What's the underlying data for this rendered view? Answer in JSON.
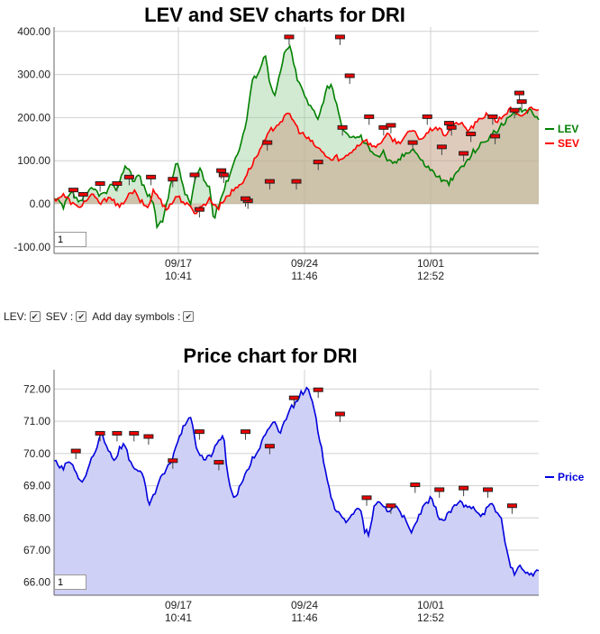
{
  "controls": {
    "lev_label": "LEV:",
    "sev_label": "SEV :",
    "day_symbols_label": "Add day symbols :",
    "check_mark": "✔"
  },
  "chart_data": [
    {
      "type": "area",
      "title": "LEV and SEV charts for DRI",
      "ylim": [
        -115,
        410
      ],
      "y_ticks": [
        "-100.00",
        "0.00",
        "100.00",
        "200.00",
        "300.00",
        "400.00"
      ],
      "x_ticks": [
        {
          "date": "09/17",
          "time": "10:41"
        },
        {
          "date": "09/24",
          "time": "11:46"
        },
        {
          "date": "10/01",
          "time": "12:52"
        }
      ],
      "zoom_value": "1",
      "colors": {
        "lev": "#008000",
        "sev": "#ff0000",
        "lev_fill": "#cfe3cf",
        "sev_fill": "#d9c4b6",
        "grid": "#c8c8c8"
      },
      "series": [
        {
          "name": "LEV",
          "values": [
            10,
            5,
            -10,
            15,
            25,
            5,
            10,
            20,
            35,
            30,
            20,
            25,
            40,
            35,
            50,
            90,
            80,
            50,
            70,
            40,
            20,
            10,
            -60,
            -40,
            0,
            60,
            100,
            60,
            20,
            0,
            60,
            80,
            50,
            40,
            -40,
            0,
            30,
            60,
            90,
            120,
            150,
            200,
            280,
            300,
            320,
            350,
            270,
            250,
            300,
            350,
            370,
            320,
            280,
            260,
            230,
            220,
            200,
            230,
            270,
            280,
            230,
            180,
            160,
            160,
            150,
            160,
            140,
            130,
            120,
            110,
            120,
            100,
            90,
            100,
            110,
            120,
            130,
            120,
            100,
            90,
            80,
            70,
            60,
            50,
            50,
            60,
            80,
            90,
            100,
            120,
            130,
            140,
            150,
            160,
            170,
            180,
            190,
            200,
            210,
            215,
            220,
            215,
            210,
            200
          ]
        },
        {
          "name": "SEV",
          "values": [
            10,
            15,
            20,
            10,
            0,
            -10,
            0,
            10,
            20,
            10,
            0,
            10,
            20,
            0,
            -10,
            10,
            20,
            30,
            10,
            0,
            -10,
            30,
            20,
            0,
            -10,
            0,
            20,
            10,
            0,
            -10,
            -20,
            -10,
            0,
            10,
            0,
            -10,
            10,
            20,
            30,
            40,
            50,
            70,
            90,
            110,
            130,
            150,
            170,
            180,
            190,
            200,
            210,
            190,
            170,
            160,
            150,
            140,
            130,
            120,
            110,
            100,
            110,
            100,
            110,
            120,
            130,
            140,
            150,
            140,
            130,
            140,
            150,
            160,
            150,
            140,
            150,
            160,
            170,
            160,
            150,
            160,
            170,
            180,
            170,
            160,
            170,
            180,
            190,
            180,
            170,
            180,
            190,
            200,
            210,
            200,
            190,
            200,
            210,
            220,
            210,
            200,
            210,
            220,
            225,
            215
          ]
        }
      ],
      "legend": {
        "position": "right",
        "entries": [
          "LEV",
          "SEV"
        ]
      },
      "day_markers": [
        {
          "x": 0.04,
          "y": 30
        },
        {
          "x": 0.06,
          "y": 20
        },
        {
          "x": 0.095,
          "y": 45
        },
        {
          "x": 0.13,
          "y": 45
        },
        {
          "x": 0.155,
          "y": 60
        },
        {
          "x": 0.2,
          "y": 60
        },
        {
          "x": 0.245,
          "y": 55
        },
        {
          "x": 0.29,
          "y": 65
        },
        {
          "x": 0.3,
          "y": -15
        },
        {
          "x": 0.35,
          "y": 65
        },
        {
          "x": 0.345,
          "y": 75
        },
        {
          "x": 0.4,
          "y": 5
        },
        {
          "x": 0.395,
          "y": 10
        },
        {
          "x": 0.44,
          "y": 140
        },
        {
          "x": 0.445,
          "y": 50
        },
        {
          "x": 0.485,
          "y": 385
        },
        {
          "x": 0.5,
          "y": 50
        },
        {
          "x": 0.59,
          "y": 385
        },
        {
          "x": 0.545,
          "y": 95
        },
        {
          "x": 0.595,
          "y": 175
        },
        {
          "x": 0.61,
          "y": 295
        },
        {
          "x": 0.65,
          "y": 200
        },
        {
          "x": 0.68,
          "y": 175
        },
        {
          "x": 0.695,
          "y": 180
        },
        {
          "x": 0.74,
          "y": 140
        },
        {
          "x": 0.77,
          "y": 200
        },
        {
          "x": 0.8,
          "y": 130
        },
        {
          "x": 0.815,
          "y": 185
        },
        {
          "x": 0.82,
          "y": 175
        },
        {
          "x": 0.845,
          "y": 115
        },
        {
          "x": 0.86,
          "y": 160
        },
        {
          "x": 0.905,
          "y": 200
        },
        {
          "x": 0.91,
          "y": 155
        },
        {
          "x": 0.95,
          "y": 215
        },
        {
          "x": 0.96,
          "y": 255
        },
        {
          "x": 0.965,
          "y": 235
        }
      ]
    },
    {
      "type": "area",
      "title": "Price chart for DRI",
      "ylim": [
        65.6,
        72.6
      ],
      "y_ticks": [
        "66.00",
        "67.00",
        "68.00",
        "69.00",
        "70.00",
        "71.00",
        "72.00"
      ],
      "x_ticks": [
        {
          "date": "09/17",
          "time": "10:41"
        },
        {
          "date": "09/24",
          "time": "11:46"
        },
        {
          "date": "10/01",
          "time": "12:52"
        }
      ],
      "zoom_value": "1",
      "colors": {
        "price": "#0000dd",
        "price_fill": "#cfd0f5",
        "grid": "#c8c8c8"
      },
      "series": [
        {
          "name": "Price",
          "values": [
            69.8,
            69.6,
            69.5,
            69.8,
            69.6,
            69.3,
            69.1,
            69.4,
            69.8,
            70.1,
            70.7,
            70.3,
            70.0,
            69.8,
            70.2,
            70.3,
            69.8,
            69.6,
            69.4,
            69.3,
            68.4,
            68.6,
            69.0,
            69.3,
            69.5,
            69.8,
            70.3,
            70.6,
            71.0,
            71.2,
            70.3,
            70.0,
            69.8,
            69.9,
            70.1,
            70.4,
            70.6,
            69.2,
            68.6,
            68.8,
            69.2,
            69.4,
            69.8,
            70.0,
            70.3,
            70.6,
            70.8,
            71.0,
            70.6,
            71.0,
            71.4,
            71.5,
            71.8,
            71.9,
            72.0,
            71.5,
            70.8,
            70.0,
            69.3,
            68.6,
            68.2,
            68.0,
            67.9,
            68.1,
            68.2,
            68.3,
            67.6,
            67.5,
            68.3,
            68.5,
            68.4,
            68.2,
            68.3,
            68.4,
            68.1,
            67.8,
            67.5,
            67.9,
            68.2,
            68.4,
            68.6,
            68.3,
            68.0,
            67.9,
            68.2,
            68.3,
            68.5,
            68.4,
            68.3,
            68.4,
            68.2,
            68.1,
            68.3,
            68.4,
            68.2,
            68.0,
            67.2,
            66.4,
            66.3,
            66.5,
            66.4,
            66.2,
            66.3,
            66.3
          ]
        }
      ],
      "legend": {
        "position": "right",
        "entries": [
          "Price"
        ]
      },
      "day_markers": [
        {
          "x": 0.045,
          "y": 70.05
        },
        {
          "x": 0.095,
          "y": 70.6
        },
        {
          "x": 0.13,
          "y": 70.6
        },
        {
          "x": 0.165,
          "y": 70.6
        },
        {
          "x": 0.195,
          "y": 70.5
        },
        {
          "x": 0.245,
          "y": 69.75
        },
        {
          "x": 0.3,
          "y": 70.65
        },
        {
          "x": 0.34,
          "y": 69.7
        },
        {
          "x": 0.395,
          "y": 70.65
        },
        {
          "x": 0.445,
          "y": 70.2
        },
        {
          "x": 0.495,
          "y": 71.7
        },
        {
          "x": 0.545,
          "y": 71.95
        },
        {
          "x": 0.59,
          "y": 71.2
        },
        {
          "x": 0.645,
          "y": 68.6
        },
        {
          "x": 0.695,
          "y": 68.35
        },
        {
          "x": 0.745,
          "y": 69.0
        },
        {
          "x": 0.795,
          "y": 68.85
        },
        {
          "x": 0.845,
          "y": 68.9
        },
        {
          "x": 0.895,
          "y": 68.85
        },
        {
          "x": 0.945,
          "y": 68.35
        }
      ]
    }
  ]
}
